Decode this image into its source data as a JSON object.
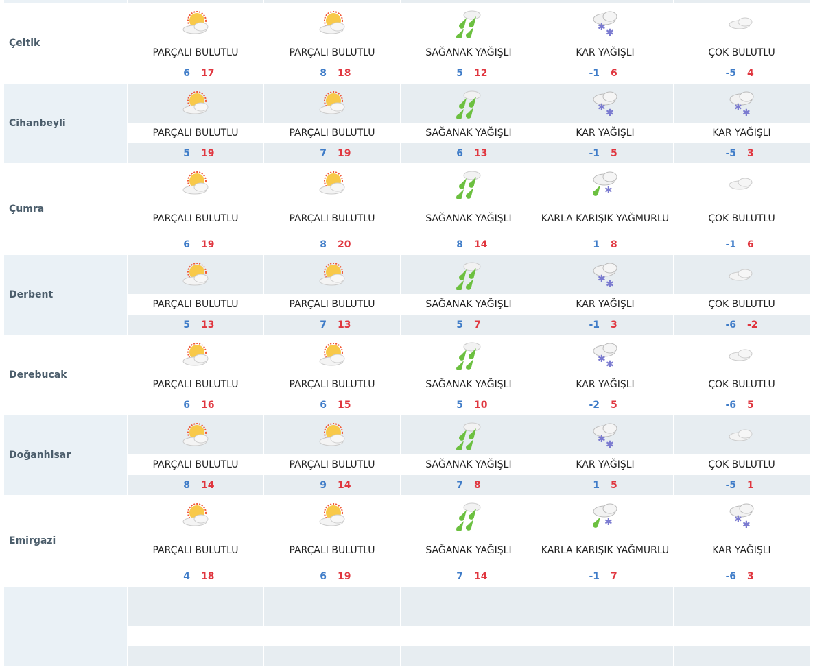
{
  "rows": [
    {
      "name": "",
      "partial": "top",
      "days": []
    },
    {
      "name": "Çeltik",
      "days": [
        {
          "icon": "partly-cloudy-icon",
          "label": "PARÇALI BULUTLU",
          "min": "6",
          "max": "17"
        },
        {
          "icon": "partly-cloudy-icon",
          "label": "PARÇALI BULUTLU",
          "min": "8",
          "max": "18"
        },
        {
          "icon": "showers-icon",
          "label": "SAĞANAK YAĞIŞLI",
          "min": "5",
          "max": "12"
        },
        {
          "icon": "snow-icon",
          "label": "KAR YAĞIŞLI",
          "min": "-1",
          "max": "6"
        },
        {
          "icon": "cloudy-icon",
          "label": "ÇOK BULUTLU",
          "min": "-5",
          "max": "4"
        }
      ]
    },
    {
      "name": "Cihanbeyli",
      "days": [
        {
          "icon": "partly-cloudy-icon",
          "label": "PARÇALI BULUTLU",
          "min": "5",
          "max": "19"
        },
        {
          "icon": "partly-cloudy-icon",
          "label": "PARÇALI BULUTLU",
          "min": "7",
          "max": "19"
        },
        {
          "icon": "showers-icon",
          "label": "SAĞANAK YAĞIŞLI",
          "min": "6",
          "max": "13"
        },
        {
          "icon": "snow-icon",
          "label": "KAR YAĞIŞLI",
          "min": "-1",
          "max": "5"
        },
        {
          "icon": "snow-icon",
          "label": "KAR YAĞIŞLI",
          "min": "-5",
          "max": "3"
        }
      ]
    },
    {
      "name": "Çumra",
      "days": [
        {
          "icon": "partly-cloudy-icon",
          "label": "PARÇALI BULUTLU",
          "min": "6",
          "max": "19"
        },
        {
          "icon": "partly-cloudy-icon",
          "label": "PARÇALI BULUTLU",
          "min": "8",
          "max": "20"
        },
        {
          "icon": "showers-icon",
          "label": "SAĞANAK YAĞIŞLI",
          "min": "8",
          "max": "14"
        },
        {
          "icon": "sleet-icon",
          "label": "KARLA KARIŞIK YAĞMURLU",
          "min": "1",
          "max": "8"
        },
        {
          "icon": "cloudy-icon",
          "label": "ÇOK BULUTLU",
          "min": "-1",
          "max": "6"
        }
      ]
    },
    {
      "name": "Derbent",
      "days": [
        {
          "icon": "partly-cloudy-icon",
          "label": "PARÇALI BULUTLU",
          "min": "5",
          "max": "13"
        },
        {
          "icon": "partly-cloudy-icon",
          "label": "PARÇALI BULUTLU",
          "min": "7",
          "max": "13"
        },
        {
          "icon": "showers-icon",
          "label": "SAĞANAK YAĞIŞLI",
          "min": "5",
          "max": "7"
        },
        {
          "icon": "snow-icon",
          "label": "KAR YAĞIŞLI",
          "min": "-1",
          "max": "3"
        },
        {
          "icon": "cloudy-icon",
          "label": "ÇOK BULUTLU",
          "min": "-6",
          "max": "-2"
        }
      ]
    },
    {
      "name": "Derebucak",
      "days": [
        {
          "icon": "partly-cloudy-icon",
          "label": "PARÇALI BULUTLU",
          "min": "6",
          "max": "16"
        },
        {
          "icon": "partly-cloudy-icon",
          "label": "PARÇALI BULUTLU",
          "min": "6",
          "max": "15"
        },
        {
          "icon": "showers-icon",
          "label": "SAĞANAK YAĞIŞLI",
          "min": "5",
          "max": "10"
        },
        {
          "icon": "snow-icon",
          "label": "KAR YAĞIŞLI",
          "min": "-2",
          "max": "5"
        },
        {
          "icon": "cloudy-icon",
          "label": "ÇOK BULUTLU",
          "min": "-6",
          "max": "5"
        }
      ]
    },
    {
      "name": "Doğanhisar",
      "days": [
        {
          "icon": "partly-cloudy-icon",
          "label": "PARÇALI BULUTLU",
          "min": "8",
          "max": "14"
        },
        {
          "icon": "partly-cloudy-icon",
          "label": "PARÇALI BULUTLU",
          "min": "9",
          "max": "14"
        },
        {
          "icon": "showers-icon",
          "label": "SAĞANAK YAĞIŞLI",
          "min": "7",
          "max": "8"
        },
        {
          "icon": "snow-icon",
          "label": "KAR YAĞIŞLI",
          "min": "1",
          "max": "5"
        },
        {
          "icon": "cloudy-icon",
          "label": "ÇOK BULUTLU",
          "min": "-5",
          "max": "1"
        }
      ]
    },
    {
      "name": "Emirgazi",
      "days": [
        {
          "icon": "partly-cloudy-icon",
          "label": "PARÇALI BULUTLU",
          "min": "4",
          "max": "18"
        },
        {
          "icon": "partly-cloudy-icon",
          "label": "PARÇALI BULUTLU",
          "min": "6",
          "max": "19"
        },
        {
          "icon": "showers-icon",
          "label": "SAĞANAK YAĞIŞLI",
          "min": "7",
          "max": "14"
        },
        {
          "icon": "sleet-icon",
          "label": "KARLA KARIŞIK YAĞMURLU",
          "min": "-1",
          "max": "7"
        },
        {
          "icon": "snow-icon",
          "label": "KAR YAĞIŞLI",
          "min": "-6",
          "max": "3"
        }
      ]
    },
    {
      "name": "",
      "partial": "bottom",
      "days": []
    }
  ],
  "colors": {
    "min": "#3f7cc8",
    "max": "#e0363f",
    "shade": "#e7edf1",
    "name": "#4b5d6b"
  }
}
